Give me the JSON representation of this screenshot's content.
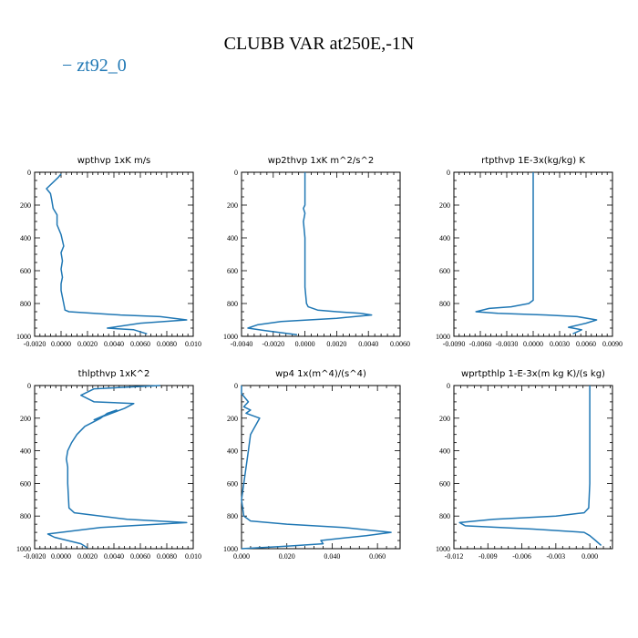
{
  "title": "CLUBB VAR at250E,-1N",
  "legend": {
    "label": "− zt92_0",
    "color": "#1f77b4"
  },
  "chart_data": [
    {
      "type": "line",
      "title": "wpthvp   1xK  m/s",
      "xlim": [
        -0.002,
        0.01
      ],
      "xticks": [
        -0.002,
        0.0,
        0.002,
        0.004,
        0.006,
        0.008,
        0.01
      ],
      "xtick_labels": [
        "-0.0020",
        "0.0000",
        "0.0020",
        "0.0040",
        "0.0060",
        "0.0080",
        "0.010"
      ],
      "ylim": [
        1000,
        0
      ],
      "yticks": [
        0,
        200,
        400,
        600,
        800,
        1000
      ],
      "ytick_labels": [
        "0",
        "200",
        "400",
        "600",
        "800",
        "1000"
      ],
      "series": [
        {
          "name": "zt92_0",
          "x": [
            0.0,
            -0.0002,
            -0.0011,
            -0.0008,
            -0.0007,
            -0.0006,
            -0.0003,
            -0.0003,
            0.0,
            0.0002,
            0.0,
            0.0001,
            0.0,
            0.0001,
            0.0,
            0.0,
            0.0002,
            0.0003,
            0.0006,
            0.0045,
            0.0075,
            0.0095,
            0.006,
            0.0035,
            0.0055,
            0.0065
          ],
          "y": [
            10,
            30,
            100,
            130,
            170,
            220,
            260,
            320,
            380,
            450,
            490,
            540,
            590,
            640,
            680,
            720,
            800,
            840,
            850,
            870,
            880,
            900,
            920,
            950,
            960,
            985
          ]
        }
      ]
    },
    {
      "type": "line",
      "title": "wp2thvp   1xK  m^2/s^2",
      "xlim": [
        -0.004,
        0.006
      ],
      "xticks": [
        -0.004,
        -0.002,
        0.0,
        0.002,
        0.004,
        0.006
      ],
      "xtick_labels": [
        "-0.0040",
        "-0.0020",
        "0.0000",
        "0.0020",
        "0.0040",
        "0.0060"
      ],
      "ylim": [
        1000,
        0
      ],
      "yticks": [
        0,
        200,
        400,
        600,
        800,
        1000
      ],
      "ytick_labels": [
        "0",
        "200",
        "400",
        "600",
        "800",
        "1000"
      ],
      "series": [
        {
          "name": "zt92_0",
          "x": [
            0.0,
            0.0,
            0.0,
            -0.0001,
            0.0,
            -0.0001,
            0.0,
            0.0,
            0.0,
            0.0,
            0.0001,
            0.0002,
            0.0008,
            0.002,
            0.0035,
            0.0042,
            0.002,
            -0.0015,
            -0.003,
            -0.0036,
            -0.0025,
            -0.0005
          ],
          "y": [
            0,
            100,
            200,
            220,
            250,
            300,
            400,
            500,
            600,
            700,
            800,
            820,
            840,
            850,
            860,
            870,
            890,
            910,
            930,
            950,
            965,
            990
          ]
        }
      ]
    },
    {
      "type": "line",
      "title": "rtpthvp   1E-3x(kg/kg)  K",
      "xlim": [
        -0.009,
        0.009
      ],
      "xticks": [
        -0.009,
        -0.006,
        -0.003,
        0.0,
        0.003,
        0.006,
        0.009
      ],
      "xtick_labels": [
        "-0.0090",
        "-0.0060",
        "-0.0030",
        "0.0000",
        "0.0030",
        "0.0060",
        "0.0090"
      ],
      "ylim": [
        1000,
        0
      ],
      "yticks": [
        0,
        200,
        400,
        600,
        800,
        1000
      ],
      "ytick_labels": [
        "0",
        "200",
        "400",
        "600",
        "800",
        "1000"
      ],
      "series": [
        {
          "name": "zt92_0",
          "x": [
            0.0,
            0.0,
            0.0,
            0.0,
            0.0,
            0.0,
            0.0,
            -0.0005,
            -0.0025,
            -0.005,
            -0.0065,
            -0.004,
            0.0015,
            0.005,
            0.0072,
            0.006,
            0.004,
            0.0055,
            0.0045
          ],
          "y": [
            0,
            200,
            400,
            600,
            700,
            750,
            780,
            800,
            820,
            830,
            850,
            860,
            870,
            880,
            900,
            920,
            945,
            960,
            985
          ]
        }
      ]
    },
    {
      "type": "line",
      "title": "thlpthvp   1xK^2",
      "xlim": [
        -0.002,
        0.01
      ],
      "xticks": [
        -0.002,
        0.0,
        0.002,
        0.004,
        0.006,
        0.008,
        0.01
      ],
      "xtick_labels": [
        "-0.0020",
        "0.0000",
        "0.0020",
        "0.0040",
        "0.0060",
        "0.0080",
        "0.010"
      ],
      "ylim": [
        1000,
        0
      ],
      "yticks": [
        0,
        200,
        400,
        600,
        800,
        1000
      ],
      "ytick_labels": [
        "0",
        "200",
        "400",
        "600",
        "800",
        "1000"
      ],
      "series": [
        {
          "name": "zt92_0",
          "x": [
            0.0075,
            0.0025,
            0.0015,
            0.0025,
            0.0055,
            0.0048,
            0.0035,
            0.0025,
            0.0042,
            0.0035,
            0.003,
            0.0018,
            0.0012,
            0.0008,
            0.0005,
            0.0004,
            0.0005,
            0.0005,
            0.0006,
            0.001,
            0.005,
            0.0095,
            0.003,
            -0.001,
            -0.0005,
            0.0015,
            0.002
          ],
          "y": [
            0,
            20,
            60,
            100,
            110,
            140,
            180,
            210,
            150,
            170,
            200,
            250,
            300,
            350,
            400,
            450,
            500,
            600,
            750,
            780,
            820,
            840,
            870,
            910,
            930,
            970,
            995
          ]
        }
      ]
    },
    {
      "type": "line",
      "title": "wp4   1x(m^4)/(s^4)",
      "xlim": [
        0.0,
        0.07
      ],
      "xticks": [
        0.0,
        0.02,
        0.04,
        0.06
      ],
      "xtick_labels": [
        "0.000",
        "0.020",
        "0.040",
        "0.060"
      ],
      "ylim": [
        1000,
        0
      ],
      "yticks": [
        0,
        200,
        400,
        600,
        800,
        1000
      ],
      "ytick_labels": [
        "0",
        "200",
        "400",
        "600",
        "800",
        "1000"
      ],
      "series": [
        {
          "name": "zt92_0",
          "x": [
            0.0,
            0.0,
            0.003,
            0.001,
            0.004,
            0.002,
            0.008,
            0.006,
            0.004,
            0.003,
            0.002,
            0.001,
            0.0,
            0.001,
            0.004,
            0.02,
            0.045,
            0.066,
            0.055,
            0.035,
            0.036,
            0.02,
            0.0
          ],
          "y": [
            0,
            50,
            100,
            130,
            150,
            170,
            200,
            250,
            300,
            400,
            500,
            600,
            700,
            800,
            830,
            850,
            870,
            900,
            920,
            950,
            970,
            985,
            1000
          ]
        }
      ]
    },
    {
      "type": "line",
      "title": "wprtpthlp   1-E-3x(m kg K)/(s kg)",
      "xlim": [
        -0.012,
        0.002
      ],
      "xticks": [
        -0.012,
        -0.009,
        -0.006,
        -0.003,
        0.0
      ],
      "xtick_labels": [
        "-0.012",
        "-0.009",
        "-0.006",
        "-0.003",
        "0.000"
      ],
      "ylim": [
        1000,
        0
      ],
      "yticks": [
        0,
        200,
        400,
        600,
        800,
        1000
      ],
      "ytick_labels": [
        "0",
        "200",
        "400",
        "600",
        "800",
        "1000"
      ],
      "series": [
        {
          "name": "zt92_0",
          "x": [
            0.0,
            0.0,
            0.0,
            0.0,
            -0.0001,
            -0.0005,
            -0.003,
            -0.0085,
            -0.0115,
            -0.011,
            -0.005,
            -0.0005,
            0.0,
            0.0005,
            0.001
          ],
          "y": [
            0,
            200,
            400,
            600,
            750,
            780,
            800,
            820,
            840,
            860,
            880,
            900,
            920,
            950,
            980
          ]
        }
      ]
    }
  ]
}
